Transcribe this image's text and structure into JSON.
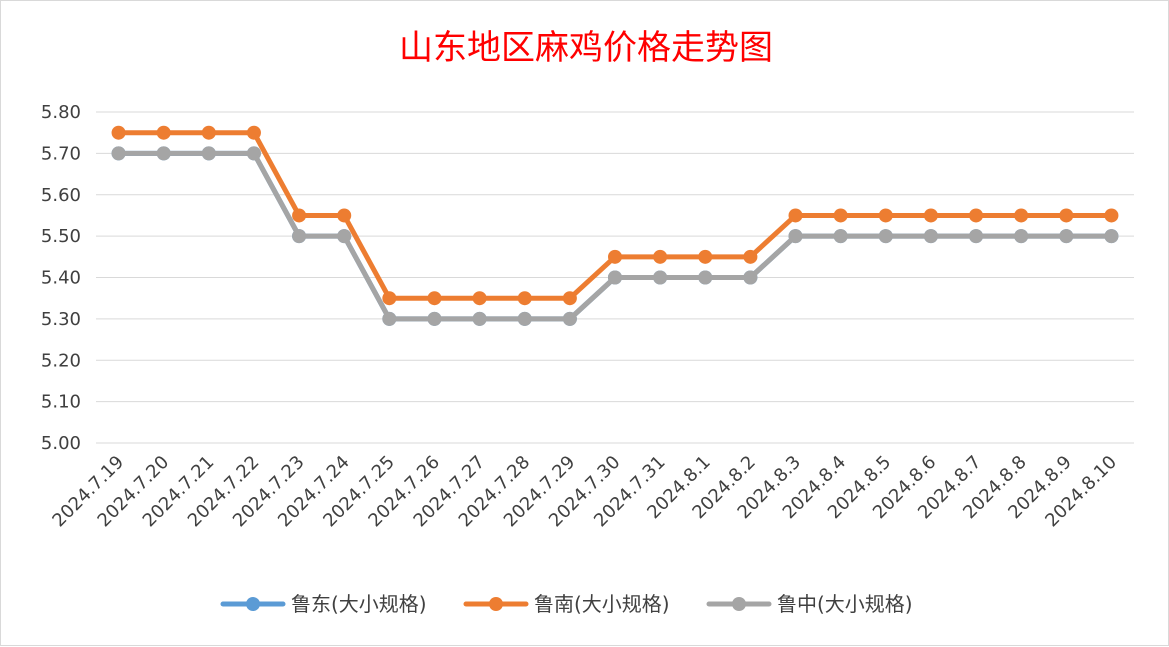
{
  "chart_data": {
    "type": "line",
    "title": "山东地区麻鸡价格走势图",
    "xlabel": "",
    "ylabel": "",
    "categories": [
      "2024.7.19",
      "2024.7.20",
      "2024.7.21",
      "2024.7.22",
      "2024.7.23",
      "2024.7.24",
      "2024.7.25",
      "2024.7.26",
      "2024.7.27",
      "2024.7.28",
      "2024.7.29",
      "2024.7.30",
      "2024.7.31",
      "2024.8.1",
      "2024.8.2",
      "2024.8.3",
      "2024.8.4",
      "2024.8.5",
      "2024.8.6",
      "2024.8.7",
      "2024.8.8",
      "2024.8.9",
      "2024.8.10"
    ],
    "ylim": [
      5.0,
      5.8
    ],
    "yticks": [
      "5.00",
      "5.10",
      "5.20",
      "5.30",
      "5.40",
      "5.50",
      "5.60",
      "5.70",
      "5.80"
    ],
    "grid": true,
    "legend_position": "bottom",
    "series": [
      {
        "name": "鲁东(大小规格)",
        "color": "#5b9bd5",
        "values": [
          5.7,
          5.7,
          5.7,
          5.7,
          5.5,
          5.5,
          5.3,
          5.3,
          5.3,
          5.3,
          5.3,
          5.4,
          5.4,
          5.4,
          5.4,
          5.5,
          5.5,
          5.5,
          5.5,
          5.5,
          5.5,
          5.5,
          5.5
        ]
      },
      {
        "name": "鲁南(大小规格)",
        "color": "#ed7d31",
        "values": [
          5.75,
          5.75,
          5.75,
          5.75,
          5.55,
          5.55,
          5.35,
          5.35,
          5.35,
          5.35,
          5.35,
          5.45,
          5.45,
          5.45,
          5.45,
          5.55,
          5.55,
          5.55,
          5.55,
          5.55,
          5.55,
          5.55,
          5.55
        ]
      },
      {
        "name": "鲁中(大小规格)",
        "color": "#a5a5a5",
        "values": [
          5.7,
          5.7,
          5.7,
          5.7,
          5.5,
          5.5,
          5.3,
          5.3,
          5.3,
          5.3,
          5.3,
          5.4,
          5.4,
          5.4,
          5.4,
          5.5,
          5.5,
          5.5,
          5.5,
          5.5,
          5.5,
          5.5,
          5.5
        ]
      }
    ]
  }
}
